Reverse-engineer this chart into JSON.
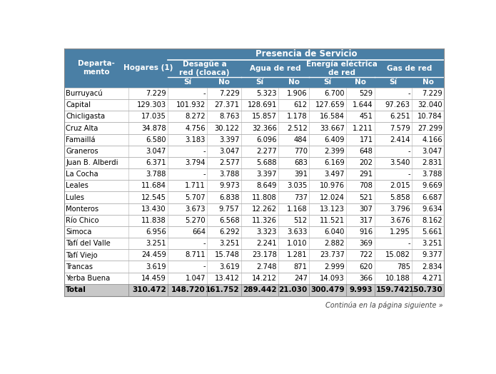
{
  "title_main": "Presencia de Servicio",
  "sub_headers": [
    "Desagüe a\nred (cloaca)",
    "Agua de red",
    "Energía eléctrica\nde red",
    "Gas de red"
  ],
  "si_no": [
    "Sí",
    "No"
  ],
  "rows": [
    [
      "Burruyacú",
      "7.229",
      "-",
      "7.229",
      "5.323",
      "1.906",
      "6.700",
      "529",
      "-",
      "7.229"
    ],
    [
      "Capital",
      "129.303",
      "101.932",
      "27.371",
      "128.691",
      "612",
      "127.659",
      "1.644",
      "97.263",
      "32.040"
    ],
    [
      "Chicligasta",
      "17.035",
      "8.272",
      "8.763",
      "15.857",
      "1.178",
      "16.584",
      "451",
      "6.251",
      "10.784"
    ],
    [
      "Cruz Alta",
      "34.878",
      "4.756",
      "30.122",
      "32.366",
      "2.512",
      "33.667",
      "1.211",
      "7.579",
      "27.299"
    ],
    [
      "Famaillá",
      "6.580",
      "3.183",
      "3.397",
      "6.096",
      "484",
      "6.409",
      "171",
      "2.414",
      "4.166"
    ],
    [
      "Graneros",
      "3.047",
      "-",
      "3.047",
      "2.277",
      "770",
      "2.399",
      "648",
      "-",
      "3.047"
    ],
    [
      "Juan B. Alberdi",
      "6.371",
      "3.794",
      "2.577",
      "5.688",
      "683",
      "6.169",
      "202",
      "3.540",
      "2.831"
    ],
    [
      "La Cocha",
      "3.788",
      "-",
      "3.788",
      "3.397",
      "391",
      "3.497",
      "291",
      "-",
      "3.788"
    ],
    [
      "Leales",
      "11.684",
      "1.711",
      "9.973",
      "8.649",
      "3.035",
      "10.976",
      "708",
      "2.015",
      "9.669"
    ],
    [
      "Lules",
      "12.545",
      "5.707",
      "6.838",
      "11.808",
      "737",
      "12.024",
      "521",
      "5.858",
      "6.687"
    ],
    [
      "Monteros",
      "13.430",
      "3.673",
      "9.757",
      "12.262",
      "1.168",
      "13.123",
      "307",
      "3.796",
      "9.634"
    ],
    [
      "Río Chico",
      "11.838",
      "5.270",
      "6.568",
      "11.326",
      "512",
      "11.521",
      "317",
      "3.676",
      "8.162"
    ],
    [
      "Simoca",
      "6.956",
      "664",
      "6.292",
      "3.323",
      "3.633",
      "6.040",
      "916",
      "1.295",
      "5.661"
    ],
    [
      "Tafí del Valle",
      "3.251",
      "-",
      "3.251",
      "2.241",
      "1.010",
      "2.882",
      "369",
      "-",
      "3.251"
    ],
    [
      "Tafí Viejo",
      "24.459",
      "8.711",
      "15.748",
      "23.178",
      "1.281",
      "23.737",
      "722",
      "15.082",
      "9.377"
    ],
    [
      "Trancas",
      "3.619",
      "-",
      "3.619",
      "2.748",
      "871",
      "2.999",
      "620",
      "785",
      "2.834"
    ],
    [
      "Yerba Buena",
      "14.459",
      "1.047",
      "13.412",
      "14.212",
      "247",
      "14.093",
      "366",
      "10.188",
      "4.271"
    ]
  ],
  "total_row": [
    "Total",
    "310.472",
    "148.720",
    "161.752",
    "289.442",
    "21.030",
    "300.479",
    "9.993",
    "159.742",
    "150.730"
  ],
  "footer": "Continúa en la página siguiente",
  "header_bg": "#4a7fa5",
  "header_text": "#ffffff",
  "total_bg": "#c8c8c8",
  "col_widths_rel": [
    1.55,
    0.95,
    0.95,
    0.82,
    0.9,
    0.74,
    0.9,
    0.68,
    0.9,
    0.78
  ]
}
